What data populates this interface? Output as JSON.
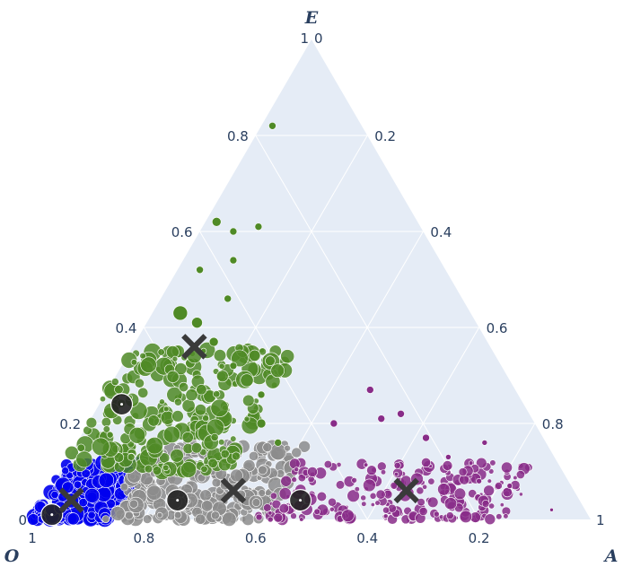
{
  "chart_data": {
    "type": "scatter",
    "subtype": "ternary",
    "title": "",
    "axes": {
      "top": {
        "label": "E",
        "ticks": [
          "0",
          "0.2",
          "0.4",
          "0.6",
          "0.8",
          "1"
        ]
      },
      "left": {
        "label": "O",
        "ticks": [
          "0.2",
          "0.4",
          "0.6",
          "0.8",
          "1"
        ]
      },
      "right": {
        "label": "A",
        "ticks": [
          "0",
          "0.2",
          "0.4",
          "0.6",
          "0.8",
          "1"
        ]
      }
    },
    "grid": true,
    "legend": "none",
    "colors": {
      "background": "#e5ecf6",
      "grid": "#ffffff",
      "text": "#2a3f5f",
      "clusters": [
        "#0000ee",
        "#8c8c8c",
        "#882c88",
        "#4f8a26"
      ],
      "marker_center": "#222222",
      "marker_cross": "#3a3a3a"
    },
    "clusters": [
      {
        "color": "#0000ee",
        "count": 260,
        "a": [
          0.0,
          0.14
        ],
        "e": [
          0.0,
          0.12
        ],
        "size": [
          4,
          9
        ],
        "alpha": 0.9
      },
      {
        "color": "#8c8c8c",
        "count": 280,
        "a": [
          0.13,
          0.42
        ],
        "e": [
          0.0,
          0.16
        ],
        "size": [
          3,
          9
        ],
        "alpha": 0.85
      },
      {
        "color": "#882c88",
        "count": 230,
        "a": [
          0.4,
          0.85
        ],
        "e": [
          0.0,
          0.12
        ],
        "size": [
          2,
          7
        ],
        "alpha": 0.85
      },
      {
        "color": "#4f8a26",
        "count": 260,
        "a": [
          0.0,
          0.3
        ],
        "e": [
          0.1,
          0.36
        ],
        "size": [
          3,
          10
        ],
        "alpha": 0.85
      }
    ],
    "sparse_points": [
      {
        "a": 0.02,
        "e": 0.82,
        "color": "#4f8a26",
        "r": 4
      },
      {
        "a": 0.02,
        "e": 0.62,
        "color": "#4f8a26",
        "r": 5
      },
      {
        "a": 0.06,
        "e": 0.6,
        "color": "#4f8a26",
        "r": 4
      },
      {
        "a": 0.1,
        "e": 0.61,
        "color": "#4f8a26",
        "r": 4
      },
      {
        "a": 0.04,
        "e": 0.52,
        "color": "#4f8a26",
        "r": 4
      },
      {
        "a": 0.09,
        "e": 0.54,
        "color": "#4f8a26",
        "r": 4
      },
      {
        "a": 0.12,
        "e": 0.46,
        "color": "#4f8a26",
        "r": 4
      },
      {
        "a": 0.05,
        "e": 0.43,
        "color": "#4f8a26",
        "r": 8
      },
      {
        "a": 0.09,
        "e": 0.41,
        "color": "#4f8a26",
        "r": 6
      },
      {
        "a": 0.14,
        "e": 0.37,
        "color": "#4f8a26",
        "r": 5
      },
      {
        "a": 0.2,
        "e": 0.32,
        "color": "#4f8a26",
        "r": 4
      },
      {
        "a": 0.28,
        "e": 0.26,
        "color": "#4f8a26",
        "r": 4
      },
      {
        "a": 0.31,
        "e": 0.2,
        "color": "#4f8a26",
        "r": 5
      },
      {
        "a": 0.36,
        "e": 0.16,
        "color": "#4f8a26",
        "r": 4
      },
      {
        "a": 0.44,
        "e": 0.2,
        "color": "#882c88",
        "r": 4
      },
      {
        "a": 0.47,
        "e": 0.27,
        "color": "#882c88",
        "r": 4
      },
      {
        "a": 0.52,
        "e": 0.21,
        "color": "#882c88",
        "r": 4
      },
      {
        "a": 0.55,
        "e": 0.22,
        "color": "#882c88",
        "r": 4
      },
      {
        "a": 0.62,
        "e": 0.17,
        "color": "#882c88",
        "r": 4
      },
      {
        "a": 0.68,
        "e": 0.13,
        "color": "#882c88",
        "r": 3
      },
      {
        "a": 0.73,
        "e": 0.16,
        "color": "#882c88",
        "r": 3
      },
      {
        "a": 0.76,
        "e": 0.08,
        "color": "#882c88",
        "r": 3
      },
      {
        "a": 0.82,
        "e": 0.07,
        "color": "#882c88",
        "r": 3
      },
      {
        "a": 0.92,
        "e": 0.02,
        "color": "#882c88",
        "r": 2
      }
    ],
    "centroids": [
      {
        "a": 0.03,
        "e": 0.01
      },
      {
        "a": 0.24,
        "e": 0.04
      },
      {
        "a": 0.46,
        "e": 0.04
      },
      {
        "a": 0.04,
        "e": 0.24
      }
    ],
    "crosses": [
      {
        "a": 0.05,
        "e": 0.04
      },
      {
        "a": 0.33,
        "e": 0.06
      },
      {
        "a": 0.64,
        "e": 0.06
      },
      {
        "a": 0.11,
        "e": 0.36
      }
    ]
  }
}
